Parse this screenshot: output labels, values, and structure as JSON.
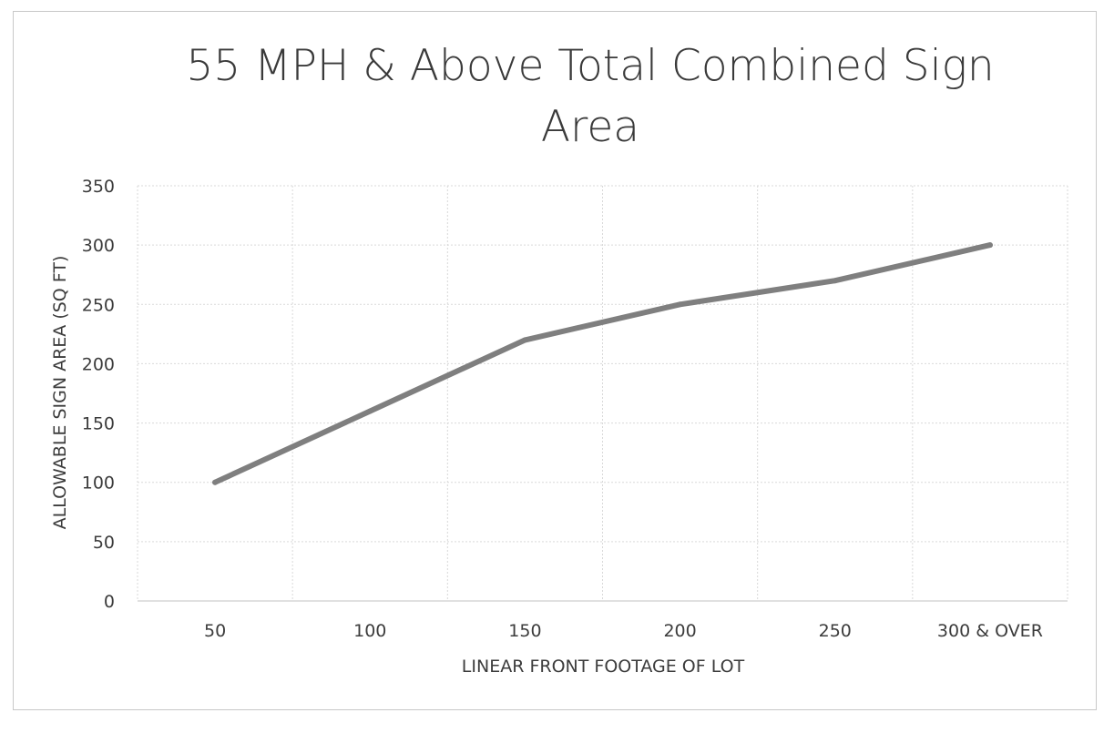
{
  "chart_data": {
    "type": "line",
    "title": [
      "55 MPH & Above Total Combined Sign",
      "Area"
    ],
    "xlabel": "LINEAR FRONT FOOTAGE OF LOT",
    "ylabel": "ALLOWABLE SIGN AREA (SQ FT)",
    "categories": [
      "50",
      "100",
      "150",
      "200",
      "250",
      "300 & OVER"
    ],
    "series": [
      {
        "values": [
          100,
          160,
          220,
          250,
          270,
          300
        ],
        "color": "#7f7f7f"
      }
    ],
    "ylim": [
      0,
      350
    ],
    "yticks": [
      "0",
      "50",
      "100",
      "150",
      "200",
      "250",
      "300",
      "350"
    ],
    "grid": true,
    "legend": "none"
  }
}
